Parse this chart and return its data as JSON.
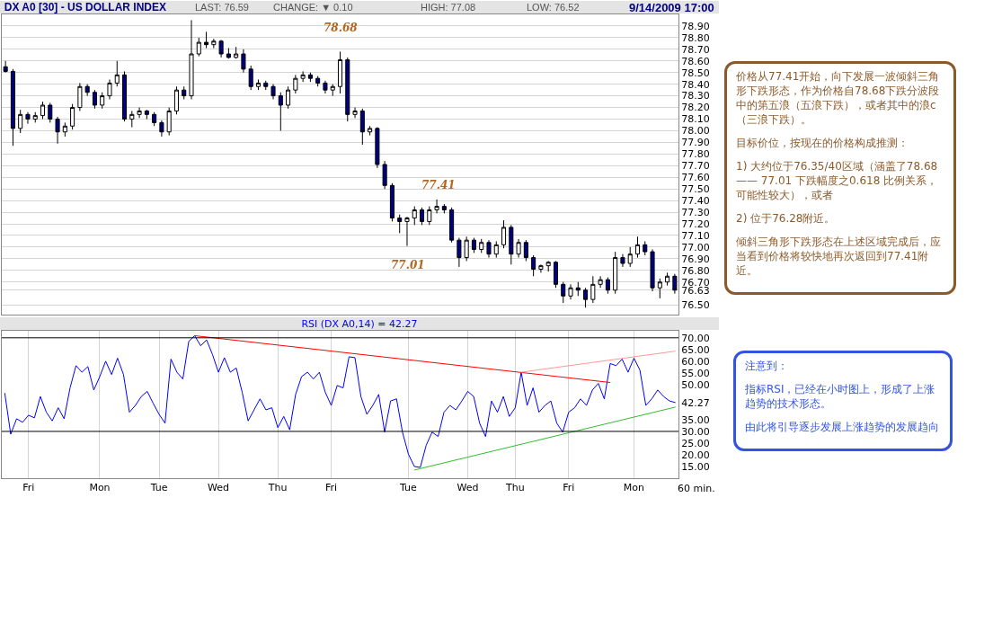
{
  "chart_data": [
    {
      "type": "candlestick",
      "title": "DX A0 [30] - US DOLLAR INDEX",
      "colors": [
        "#000080",
        "#000080",
        "#ffffff",
        "#000080",
        "#ffffff",
        "#ffffff",
        "#000080",
        "#000080",
        "#ffffff",
        "#ffffff",
        "#ffffff",
        "#000080",
        "#000080",
        "#ffffff",
        "#ffffff",
        "#ffffff",
        "#000080",
        "#ffffff",
        "#ffffff",
        "#000080",
        "#000080",
        "#000080",
        "#ffffff",
        "#ffffff",
        "#000080",
        "#ffffff",
        "#ffffff",
        "#000080",
        "#ffffff",
        "#000080",
        "#000080",
        "#ffffff",
        "#000080",
        "#000080",
        "#ffffff",
        "#000080",
        "#000080",
        "#000080",
        "#ffffff",
        "#ffffff",
        "#ffffff",
        "#000080",
        "#000080",
        "#000080",
        "#ffffff",
        "#ffffff",
        "#000080",
        "#ffffff",
        "#000080",
        "#ffffff",
        "#000080",
        "#000080",
        "#000080",
        "#000080",
        "#ffffff",
        "#ffffff",
        "#000080",
        "#ffffff",
        "#ffffff",
        "#000080",
        "#000080",
        "#000080",
        "#ffffff",
        "#000080",
        "#ffffff",
        "#000080",
        "#ffffff",
        "#ffffff",
        "#000080",
        "#ffffff",
        "#000080",
        "#000080",
        "#ffffff",
        "#ffffff",
        "#000080",
        "#000080",
        "#ffffff",
        "#000080",
        "#000080",
        "#ffffff",
        "#ffffff",
        "#000080",
        "#ffffff",
        "#000080",
        "#ffffff",
        "#ffffff",
        "#000080",
        "#000080",
        "#ffffff",
        "#ffffff",
        "#000080"
      ],
      "annotations": [
        "LAST: 76.59",
        "CHANGE: ▼ 0.10",
        "HIGH: 77.08",
        "LOW: 76.52",
        "9/14/2009 17:00",
        "78.68",
        "77.41",
        "77.01"
      ],
      "categories": [
        null,
        null,
        null,
        null,
        null,
        null,
        null,
        null,
        null,
        null,
        null,
        null,
        null,
        null,
        null,
        null,
        null,
        null,
        null,
        null,
        null,
        null,
        null,
        null,
        null,
        null,
        null,
        null,
        null,
        null,
        null,
        null,
        null,
        null,
        null,
        null,
        null,
        null,
        null,
        null,
        null,
        null,
        null,
        null,
        null,
        null,
        null,
        null,
        null,
        null,
        null,
        null,
        null,
        null,
        null,
        null,
        null,
        null,
        null,
        null,
        null,
        null,
        null,
        null,
        null,
        null,
        null,
        null,
        null,
        null,
        null,
        null,
        null,
        null,
        null,
        null,
        null,
        null,
        null,
        null,
        null,
        null,
        null,
        null,
        null,
        null,
        null,
        null,
        null,
        null,
        null
      ],
      "ohlc": [
        [
          78.55,
          78.6,
          78.5,
          78.51
        ],
        [
          78.51,
          78.53,
          77.87,
          78.02
        ],
        [
          78.02,
          78.18,
          77.98,
          78.14
        ],
        [
          78.14,
          78.16,
          78.06,
          78.1
        ],
        [
          78.1,
          78.16,
          78.07,
          78.13
        ],
        [
          78.13,
          78.25,
          78.1,
          78.22
        ],
        [
          78.22,
          78.24,
          78.07,
          78.1
        ],
        [
          78.1,
          78.12,
          77.89,
          77.99
        ],
        [
          77.99,
          78.07,
          77.95,
          78.04
        ],
        [
          78.04,
          78.23,
          78.01,
          78.2
        ],
        [
          78.2,
          78.41,
          78.17,
          78.38
        ],
        [
          78.38,
          78.4,
          78.3,
          78.33
        ],
        [
          78.33,
          78.35,
          78.19,
          78.22
        ],
        [
          78.22,
          78.33,
          78.19,
          78.3
        ],
        [
          78.3,
          78.44,
          78.27,
          78.41
        ],
        [
          78.41,
          78.6,
          78.38,
          78.48
        ],
        [
          78.48,
          78.51,
          78.08,
          78.1
        ],
        [
          78.1,
          78.17,
          78.03,
          78.14
        ],
        [
          78.14,
          78.2,
          78.11,
          78.17
        ],
        [
          78.17,
          78.18,
          78.1,
          78.14
        ],
        [
          78.14,
          78.16,
          78.04,
          78.07
        ],
        [
          78.07,
          78.09,
          77.95,
          77.99
        ],
        [
          77.99,
          78.2,
          77.96,
          78.17
        ],
        [
          78.17,
          78.38,
          78.14,
          78.35
        ],
        [
          78.35,
          78.38,
          78.27,
          78.3
        ],
        [
          78.3,
          78.95,
          78.27,
          78.66
        ],
        [
          78.66,
          78.8,
          78.64,
          78.76
        ],
        [
          78.76,
          78.85,
          78.71,
          78.74
        ],
        [
          78.74,
          78.79,
          78.71,
          78.77
        ],
        [
          78.77,
          78.78,
          78.63,
          78.66
        ],
        [
          78.66,
          78.71,
          78.62,
          78.63
        ],
        [
          78.63,
          78.72,
          78.62,
          78.66
        ],
        [
          78.66,
          78.7,
          78.5,
          78.53
        ],
        [
          78.53,
          78.56,
          78.35,
          78.38
        ],
        [
          78.38,
          78.44,
          78.35,
          78.41
        ],
        [
          78.41,
          78.43,
          78.35,
          78.38
        ],
        [
          78.38,
          78.4,
          78.27,
          78.3
        ],
        [
          78.3,
          78.33,
          78.0,
          78.22
        ],
        [
          78.22,
          78.38,
          78.19,
          78.35
        ],
        [
          78.35,
          78.48,
          78.32,
          78.45
        ],
        [
          78.45,
          78.51,
          78.42,
          78.48
        ],
        [
          78.48,
          78.5,
          78.42,
          78.45
        ],
        [
          78.45,
          78.47,
          78.38,
          78.41
        ],
        [
          78.41,
          78.43,
          78.32,
          78.35
        ],
        [
          78.35,
          78.4,
          78.3,
          78.38
        ],
        [
          78.38,
          78.68,
          78.32,
          78.61
        ],
        [
          78.61,
          78.63,
          78.08,
          78.14
        ],
        [
          78.14,
          78.2,
          78.11,
          78.17
        ],
        [
          78.17,
          78.19,
          77.88,
          77.99
        ],
        [
          77.99,
          78.04,
          77.96,
          78.02
        ],
        [
          78.02,
          78.03,
          77.68,
          77.71
        ],
        [
          77.71,
          77.74,
          77.5,
          77.53
        ],
        [
          77.53,
          77.55,
          77.22,
          77.25
        ],
        [
          77.25,
          77.28,
          77.12,
          77.22
        ],
        [
          77.22,
          77.26,
          77.01,
          77.25
        ],
        [
          77.25,
          77.35,
          77.19,
          77.32
        ],
        [
          77.32,
          77.34,
          77.19,
          77.22
        ],
        [
          77.22,
          77.35,
          77.19,
          77.32
        ],
        [
          77.32,
          77.41,
          77.29,
          77.35
        ],
        [
          77.35,
          77.37,
          77.29,
          77.32
        ],
        [
          77.32,
          77.34,
          77.04,
          77.06
        ],
        [
          77.06,
          77.08,
          76.83,
          76.91
        ],
        [
          76.91,
          77.09,
          76.88,
          77.06
        ],
        [
          77.06,
          77.08,
          76.95,
          76.98
        ],
        [
          76.98,
          77.07,
          76.95,
          77.04
        ],
        [
          77.04,
          77.06,
          76.91,
          76.94
        ],
        [
          76.94,
          77.05,
          76.91,
          77.02
        ],
        [
          77.02,
          77.23,
          76.99,
          77.17
        ],
        [
          77.17,
          77.19,
          76.85,
          76.94
        ],
        [
          76.94,
          77.07,
          76.91,
          77.04
        ],
        [
          77.04,
          77.06,
          76.88,
          76.91
        ],
        [
          76.91,
          76.93,
          76.75,
          76.81
        ],
        [
          76.81,
          76.85,
          76.78,
          76.84
        ],
        [
          76.84,
          76.88,
          76.79,
          76.87
        ],
        [
          76.87,
          76.88,
          76.65,
          76.68
        ],
        [
          76.68,
          76.7,
          76.52,
          76.58
        ],
        [
          76.58,
          76.68,
          76.55,
          76.65
        ],
        [
          76.65,
          76.7,
          76.58,
          76.63
        ],
        [
          76.63,
          76.65,
          76.48,
          76.55
        ],
        [
          76.55,
          76.75,
          76.52,
          76.68
        ],
        [
          76.68,
          76.75,
          76.65,
          76.72
        ],
        [
          76.72,
          76.74,
          76.6,
          76.63
        ],
        [
          76.63,
          76.96,
          76.6,
          76.91
        ],
        [
          76.91,
          76.94,
          76.83,
          76.86
        ],
        [
          76.86,
          77.0,
          76.83,
          76.94
        ],
        [
          76.94,
          77.09,
          76.91,
          77.02
        ],
        [
          77.02,
          77.05,
          76.93,
          76.96
        ],
        [
          76.96,
          76.98,
          76.62,
          76.65
        ],
        [
          76.65,
          76.73,
          76.56,
          76.7
        ],
        [
          76.7,
          76.78,
          76.67,
          76.75
        ],
        [
          76.75,
          76.77,
          76.6,
          76.63
        ]
      ],
      "ylim": [
        76.42,
        79.0
      ],
      "yticks": [
        {
          "value": 76.5,
          "label": "76.50"
        },
        {
          "value": 76.63,
          "label": "76.63"
        },
        {
          "value": 76.7,
          "label": "76.70"
        },
        {
          "value": 76.8,
          "label": "76.80"
        },
        {
          "value": 76.9,
          "label": "76.90"
        },
        {
          "value": 77.0,
          "label": "77.00"
        },
        {
          "value": 77.1,
          "label": "77.10"
        },
        {
          "value": 77.2,
          "label": "77.20"
        },
        {
          "value": 77.3,
          "label": "77.30"
        },
        {
          "value": 77.4,
          "label": "77.40"
        },
        {
          "value": 77.5,
          "label": "77.50"
        },
        {
          "value": 77.6,
          "label": "77.60"
        },
        {
          "value": 77.7,
          "label": "77.70"
        },
        {
          "value": 77.8,
          "label": "77.80"
        },
        {
          "value": 77.9,
          "label": "77.90"
        },
        {
          "value": 78.0,
          "label": "78.00"
        },
        {
          "value": 78.1,
          "label": "78.10"
        },
        {
          "value": 78.2,
          "label": "78.20"
        },
        {
          "value": 78.3,
          "label": "78.30"
        },
        {
          "value": 78.4,
          "label": "78.40"
        },
        {
          "value": 78.5,
          "label": "78.50"
        },
        {
          "value": 78.6,
          "label": "78.60"
        },
        {
          "value": 78.7,
          "label": "78.70"
        },
        {
          "value": 78.8,
          "label": "78.80"
        },
        {
          "value": 78.9,
          "label": "78.90"
        }
      ],
      "grid": "y",
      "tick_labels": "y"
    },
    {
      "type": "line",
      "title": "RSI (DX A0,14) = 42.27",
      "xlabel": "60 min.",
      "categories": [
        null,
        null,
        null,
        null,
        "Fri",
        null,
        null,
        null,
        null,
        null,
        null,
        null,
        null,
        null,
        null,
        null,
        "Mon",
        null,
        null,
        null,
        null,
        null,
        null,
        null,
        null,
        null,
        "Tue",
        null,
        null,
        null,
        null,
        null,
        null,
        null,
        null,
        null,
        "Wed",
        null,
        null,
        null,
        null,
        null,
        null,
        null,
        null,
        null,
        "Thu",
        null,
        null,
        null,
        null,
        null,
        null,
        null,
        null,
        "Fri",
        null,
        null,
        null,
        null,
        null,
        null,
        null,
        null,
        null,
        null,
        null,
        null,
        "Tue",
        null,
        null,
        null,
        null,
        null,
        null,
        null,
        null,
        null,
        "Wed",
        null,
        null,
        null,
        null,
        null,
        null,
        null,
        "Thu",
        null,
        null,
        null,
        null,
        null,
        null,
        null,
        null,
        "Fri",
        null,
        null,
        null,
        null,
        null,
        null,
        null,
        null,
        null,
        null,
        "Mon",
        null,
        null,
        null,
        null,
        null,
        null,
        null
      ],
      "series": [
        {
          "type": "line",
          "color": "#0000ff",
          "values": [
            46.4,
            28.8,
            35.4,
            33.9,
            36.9,
            35.8,
            44.9,
            38.2,
            34.5,
            40.1,
            35.4,
            48.6,
            58.1,
            55.3,
            57.7,
            47.7,
            53.4,
            60.0,
            54.3,
            61.3,
            54.3,
            38.2,
            41.1,
            44.9,
            47.1,
            42.0,
            37.3,
            33.5,
            60.9,
            55.3,
            52.4,
            68.5,
            70.9,
            66.6,
            69.1,
            62.8,
            55.3,
            61.5,
            55.3,
            57.1,
            46.7,
            34.5,
            39.2,
            43.9,
            39.2,
            40.1,
            31.6,
            36.4,
            30.7,
            45.8,
            53.4,
            55.3,
            52.4,
            55.3,
            46.7,
            41.1,
            49.6,
            48.6,
            61.9,
            61.5,
            44.9,
            37.3,
            41.1,
            45.8,
            29.7,
            43.0,
            43.9,
            29.7,
            20.3,
            15.0,
            14.6,
            24.1,
            29.7,
            27.8,
            38.2,
            41.1,
            39.2,
            43.0,
            47.1,
            44.9,
            33.5,
            27.8,
            43.0,
            38.2,
            44.9,
            36.4,
            40.1,
            55.3,
            41.1,
            48.6,
            38.2,
            41.1,
            43.0,
            33.5,
            29.7,
            38.2,
            40.1,
            43.9,
            41.1,
            47.7,
            50.5,
            43.9,
            59.0,
            58.1,
            60.9,
            55.3,
            61.3,
            56.2,
            41.1,
            43.9,
            47.7,
            44.9,
            43.0,
            42.3
          ]
        },
        {
          "type": "line",
          "color": "#ff0000",
          "values": [
            null,
            null,
            null,
            null,
            null,
            null,
            null,
            null,
            null,
            null,
            null,
            null,
            null,
            null,
            null,
            null,
            null,
            null,
            null,
            null,
            null,
            null,
            null,
            null,
            null,
            null,
            null,
            null,
            null,
            null,
            null,
            null,
            70.9,
            null,
            null,
            null,
            null,
            null,
            null,
            null,
            null,
            null,
            null,
            null,
            null,
            null,
            null,
            null,
            null,
            null,
            null,
            null,
            null,
            null,
            null,
            null,
            null,
            null,
            null,
            null,
            null,
            null,
            null,
            null,
            null,
            null,
            null,
            null,
            null,
            null,
            null,
            null,
            null,
            null,
            null,
            null,
            null,
            null,
            null,
            null,
            null,
            null,
            null,
            null,
            null,
            null,
            null,
            null,
            null,
            null,
            null,
            null,
            null,
            null,
            null,
            null,
            null,
            null,
            null,
            null,
            null,
            null,
            50.9,
            null,
            null,
            null,
            null,
            null,
            null,
            null,
            null,
            null,
            null,
            null
          ]
        },
        {
          "type": "line",
          "color": "#ff9999",
          "values": [
            null,
            null,
            null,
            null,
            null,
            null,
            null,
            null,
            null,
            null,
            null,
            null,
            null,
            null,
            null,
            null,
            null,
            null,
            null,
            null,
            null,
            null,
            null,
            null,
            null,
            null,
            null,
            null,
            null,
            null,
            null,
            null,
            null,
            null,
            null,
            null,
            null,
            null,
            null,
            null,
            null,
            null,
            null,
            null,
            null,
            null,
            null,
            null,
            null,
            null,
            null,
            null,
            null,
            null,
            null,
            null,
            null,
            null,
            null,
            null,
            null,
            null,
            null,
            null,
            null,
            null,
            null,
            null,
            null,
            null,
            null,
            null,
            null,
            null,
            null,
            null,
            null,
            null,
            null,
            null,
            null,
            null,
            null,
            null,
            null,
            null,
            null,
            55.3,
            null,
            null,
            null,
            null,
            null,
            null,
            null,
            null,
            null,
            null,
            null,
            null,
            null,
            null,
            null,
            null,
            null,
            null,
            null,
            null,
            null,
            null,
            null,
            null,
            null,
            64.3
          ]
        },
        {
          "type": "line",
          "color": "#33bb33",
          "values": [
            null,
            null,
            null,
            null,
            null,
            null,
            null,
            null,
            null,
            null,
            null,
            null,
            null,
            null,
            null,
            null,
            null,
            null,
            null,
            null,
            null,
            null,
            null,
            null,
            null,
            null,
            null,
            null,
            null,
            null,
            null,
            null,
            null,
            null,
            null,
            null,
            null,
            null,
            null,
            null,
            null,
            null,
            null,
            null,
            null,
            null,
            null,
            null,
            null,
            null,
            null,
            null,
            null,
            null,
            null,
            null,
            null,
            null,
            null,
            null,
            null,
            null,
            null,
            null,
            null,
            null,
            null,
            null,
            null,
            13.5,
            null,
            null,
            null,
            null,
            null,
            null,
            null,
            null,
            null,
            null,
            null,
            null,
            null,
            null,
            null,
            null,
            null,
            null,
            null,
            null,
            null,
            null,
            null,
            null,
            null,
            null,
            null,
            null,
            null,
            null,
            null,
            null,
            null,
            null,
            null,
            null,
            null,
            null,
            null,
            null,
            null,
            null,
            null,
            40.4
          ]
        }
      ],
      "ref_lines": [
        {
          "axis": "y",
          "value": 70,
          "color": "#000000"
        },
        {
          "axis": "y",
          "value": 30,
          "color": "#000000"
        }
      ],
      "ylim": [
        10,
        73
      ],
      "yticks": [
        {
          "value": 15,
          "label": "15.00"
        },
        {
          "value": 20,
          "label": "20.00"
        },
        {
          "value": 25,
          "label": "25.00"
        },
        {
          "value": 30,
          "label": "30.00"
        },
        {
          "value": 35,
          "label": "35.00"
        },
        {
          "value": 42.27,
          "label": "42.27"
        },
        {
          "value": 50,
          "label": "50.00"
        },
        {
          "value": 55,
          "label": "55.00"
        },
        {
          "value": 60,
          "label": "60.00"
        },
        {
          "value": 65,
          "label": "65.00"
        },
        {
          "value": 70,
          "label": "70.00"
        }
      ],
      "grid": "x"
    },
    {
      "type": "other",
      "color": "#8b5a2b",
      "annotations": [
        "价格从77.41开始，向下发展一波倾斜三角形下跌形态，作为价格自78.68下跌分波段中的第五浪（五浪下跌），或者其中的浪c（三浪下跌）。",
        "目标价位，按现在的价格构成推测：",
        "1) 大约位于76.35/40区域（涵盖了78.68 —— 77.01 下跌幅度之0.618 比例关系，可能性较大），或者",
        "2) 位于76.28附近。",
        "倾斜三角形下跌形态在上述区域完成后，应当看到价格将较快地再次返回到77.41附近。"
      ]
    },
    {
      "type": "other",
      "color": "#3355dd",
      "annotations": [
        "注意到：",
        "指标RSI，已经在小时图上，形成了上涨趋势的技术形态。",
        "由此将引导逐步发展上涨趋势的发展趋向"
      ]
    }
  ]
}
